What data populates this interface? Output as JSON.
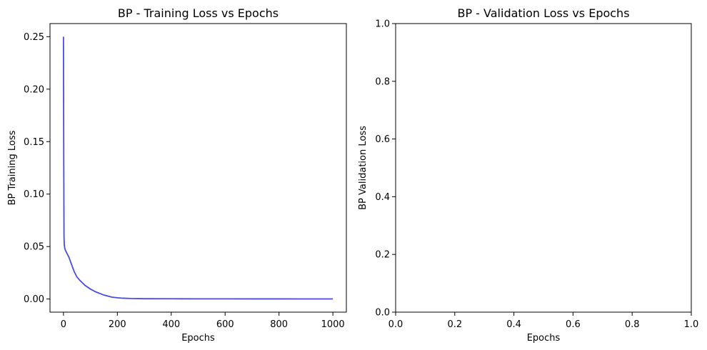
{
  "chart_data": [
    {
      "type": "line",
      "title": "BP - Training Loss vs Epochs",
      "xlabel": "Epochs",
      "ylabel": "BP Training Loss",
      "xlim": [
        -50,
        1050
      ],
      "ylim": [
        -0.0125,
        0.2625
      ],
      "xticks": [
        0,
        200,
        400,
        600,
        800,
        1000
      ],
      "xtick_labels": [
        "0",
        "200",
        "400",
        "600",
        "800",
        "1000"
      ],
      "yticks": [
        0,
        0.05,
        0.1,
        0.15,
        0.2,
        0.25
      ],
      "ytick_labels": [
        "0.00",
        "0.05",
        "0.10",
        "0.15",
        "0.20",
        "0.25"
      ],
      "grid": false,
      "series": [
        {
          "color": "#4a4ae6",
          "x": [
            0,
            1,
            2,
            3,
            5,
            8,
            12,
            20,
            30,
            40,
            50,
            60,
            80,
            100,
            120,
            150,
            180,
            200,
            220,
            250,
            300,
            400,
            500,
            600,
            700,
            800,
            900,
            1000
          ],
          "y": [
            0.25,
            0.14,
            0.06,
            0.052,
            0.048,
            0.046,
            0.044,
            0.04,
            0.033,
            0.026,
            0.021,
            0.018,
            0.013,
            0.0095,
            0.0068,
            0.0038,
            0.0018,
            0.0012,
            0.0008,
            0.0005,
            0.0003,
            0.00025,
            0.0002,
            0.0002,
            0.00015,
            0.00015,
            0.0001,
            0.0001
          ]
        }
      ]
    },
    {
      "type": "line",
      "title": "BP - Validation Loss vs Epochs",
      "xlabel": "Epochs",
      "ylabel": "BP Validation Loss",
      "xlim": [
        0,
        1
      ],
      "ylim": [
        0,
        1
      ],
      "xticks": [
        0,
        0.2,
        0.4,
        0.6,
        0.8,
        1.0
      ],
      "xtick_labels": [
        "0.0",
        "0.2",
        "0.4",
        "0.6",
        "0.8",
        "1.0"
      ],
      "yticks": [
        0,
        0.2,
        0.4,
        0.6,
        0.8,
        1.0
      ],
      "ytick_labels": [
        "0.0",
        "0.2",
        "0.4",
        "0.6",
        "0.8",
        "1.0"
      ],
      "grid": false,
      "series": []
    }
  ]
}
